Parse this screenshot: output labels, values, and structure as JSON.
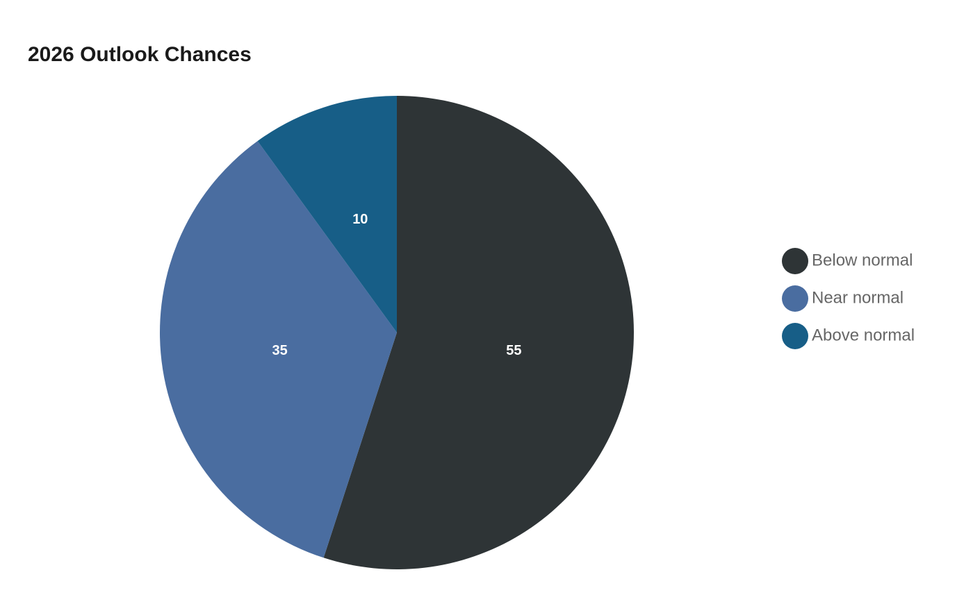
{
  "chart_data": {
    "type": "pie",
    "title": "2026 Outlook Chances",
    "categories": [
      "Below normal",
      "Near normal",
      "Above normal"
    ],
    "values": [
      55,
      35,
      10
    ],
    "colors": [
      "#2e3436",
      "#4a6da0",
      "#175e87"
    ],
    "legend": "right"
  }
}
